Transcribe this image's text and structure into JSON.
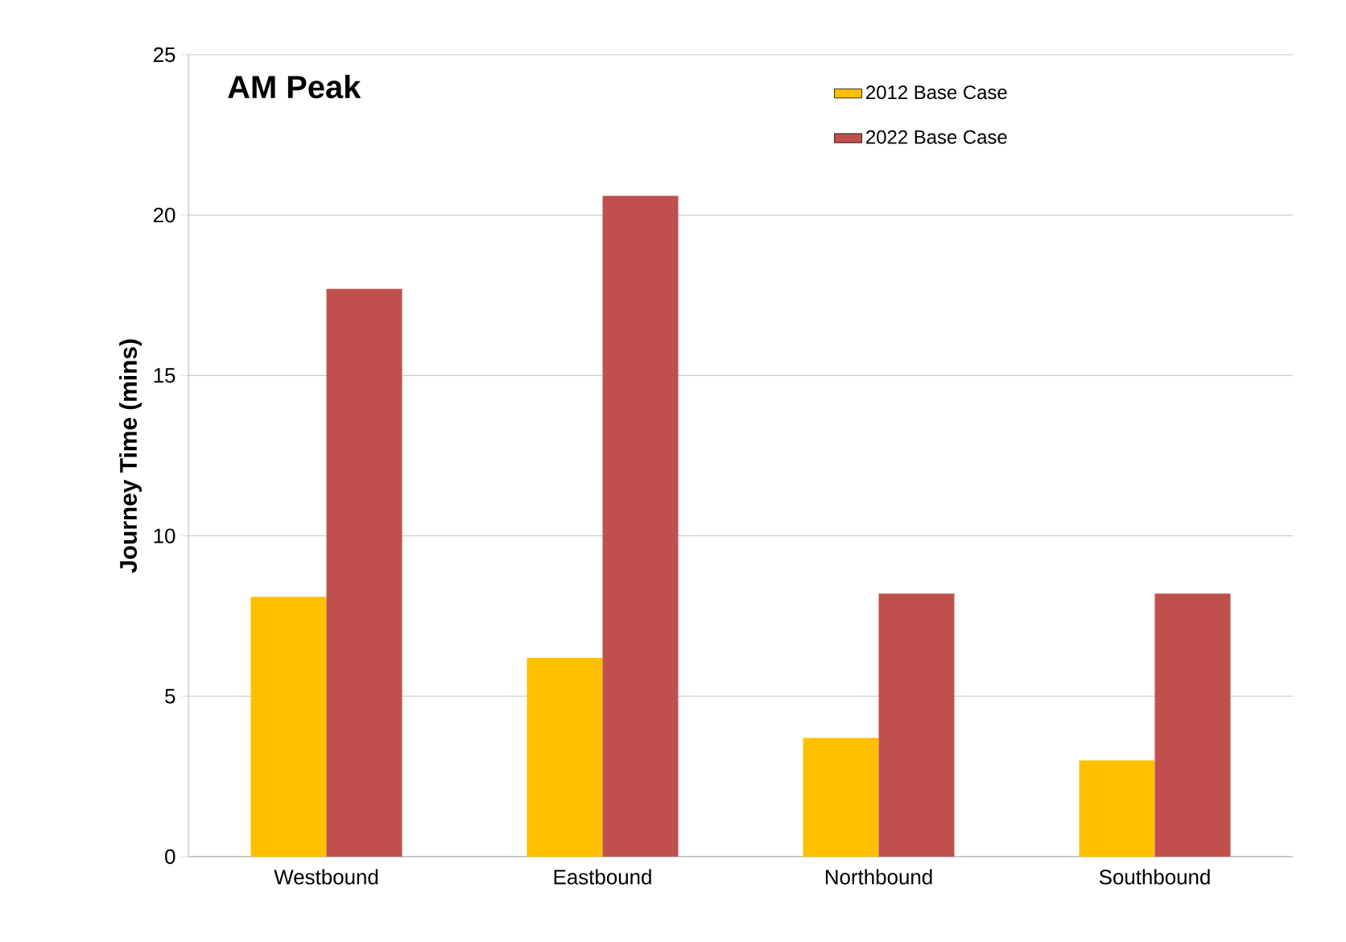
{
  "chart_data": {
    "type": "bar",
    "title": "AM Peak",
    "ylabel": "Journey Time (mins)",
    "categories": [
      "Westbound",
      "Eastbound",
      "Northbound",
      "Southbound"
    ],
    "series": [
      {
        "name": "2012 Base Case",
        "color": "#ffc000",
        "values": [
          8.1,
          6.2,
          3.7,
          3.0
        ]
      },
      {
        "name": "2022 Base Case",
        "color": "#c0504d",
        "values": [
          17.7,
          20.6,
          8.2,
          8.2
        ]
      }
    ],
    "ylim": [
      0,
      25
    ],
    "yticks": [
      0,
      5,
      10,
      15,
      20,
      25
    ],
    "grid": "y",
    "legend": "top right"
  }
}
